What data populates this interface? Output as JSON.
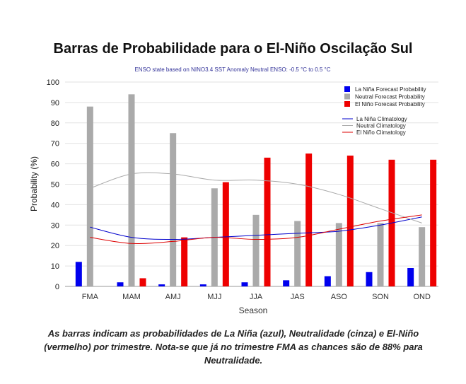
{
  "title": "Barras de Probabilidade para o El-Niño Oscilação Sul",
  "caption": "As barras indicam as probabilidades de La Niña (azul), Neutralidade (cinza) e El-Niño (vermelho) por trimestre. Nota-se que já no trimestre FMA as chances são de 88% para Neutralidade.",
  "chart_data": {
    "type": "bar",
    "subtitle": "ENSO state based on NINO3.4 SST Anomaly Neutral ENSO: -0.5 °C to 0.5 °C",
    "xlabel": "Season",
    "ylabel": "Probability (%)",
    "ylim": [
      0,
      100
    ],
    "yticks": [
      "0",
      "10",
      "20",
      "30",
      "40",
      "50",
      "60",
      "70",
      "80",
      "90",
      "100"
    ],
    "grid": true,
    "legend_position": "top-right",
    "categories": [
      "FMA",
      "MAM",
      "AMJ",
      "MJJ",
      "JJA",
      "JAS",
      "ASO",
      "SON",
      "OND"
    ],
    "series": [
      {
        "name": "La Niña Forecast Probability",
        "kind": "bar",
        "color": "#0000ee",
        "values": [
          12,
          2,
          1,
          1,
          2,
          3,
          5,
          7,
          9
        ]
      },
      {
        "name": "Neutral Forecast Probability",
        "kind": "bar",
        "color": "#aaaaaa",
        "values": [
          88,
          94,
          75,
          48,
          35,
          32,
          31,
          31,
          29
        ]
      },
      {
        "name": "El Niño Forecast Probability",
        "kind": "bar",
        "color": "#ee0000",
        "values": [
          0,
          4,
          24,
          51,
          63,
          65,
          64,
          62,
          62
        ]
      },
      {
        "name": "La Niña Climatology",
        "kind": "line",
        "color": "#0000cc",
        "values": [
          29,
          24,
          23,
          24,
          25,
          26,
          27,
          30,
          34
        ]
      },
      {
        "name": "Neutral Climatology",
        "kind": "line",
        "color": "#aaaaaa",
        "values": [
          48,
          55,
          55,
          52,
          52,
          50,
          45,
          38,
          31
        ]
      },
      {
        "name": "El Niño Climatology",
        "kind": "line",
        "color": "#dd0000",
        "values": [
          24,
          21,
          22,
          24,
          23,
          24,
          28,
          32,
          35
        ]
      }
    ]
  }
}
